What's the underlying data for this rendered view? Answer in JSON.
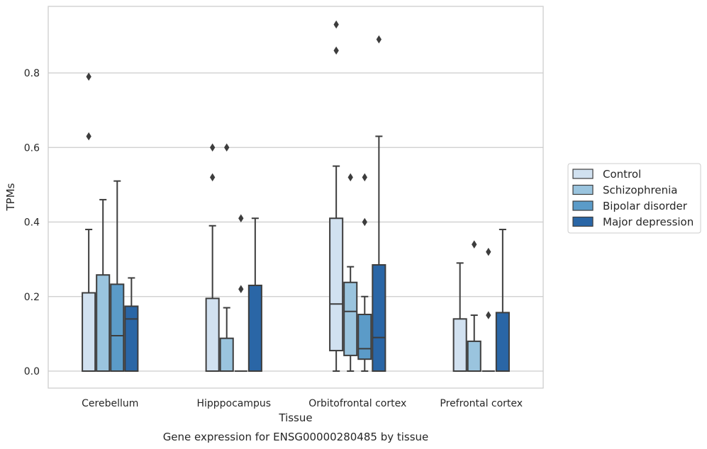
{
  "chart_data": {
    "type": "box",
    "title": "",
    "caption": "Gene expression for ENSG00000280485 by tissue",
    "xlabel": "Tissue",
    "ylabel": "TPMs",
    "ylim": [
      -0.045,
      0.98
    ],
    "yticks": [
      0.0,
      0.2,
      0.4,
      0.6,
      0.8
    ],
    "ytick_labels": [
      "0.0",
      "0.2",
      "0.4",
      "0.6",
      "0.8"
    ],
    "grid": true,
    "legend_position": "right-outside",
    "categories": [
      "Cerebellum",
      "Hipppocampus",
      "Orbitofrontal cortex",
      "Prefrontal cortex"
    ],
    "series": [
      {
        "name": "Control",
        "color": "#d1e1f0",
        "boxes": [
          {
            "whislo": 0.0,
            "q1": 0.0,
            "med": 0.0,
            "q3": 0.21,
            "whishi": 0.38,
            "fliers": [
              0.63,
              0.79
            ]
          },
          {
            "whislo": 0.0,
            "q1": 0.0,
            "med": 0.0,
            "q3": 0.195,
            "whishi": 0.39,
            "fliers": [
              0.52,
              0.6
            ]
          },
          {
            "whislo": 0.0,
            "q1": 0.055,
            "med": 0.18,
            "q3": 0.41,
            "whishi": 0.55,
            "fliers": [
              0.86,
              0.93
            ]
          },
          {
            "whislo": 0.0,
            "q1": 0.0,
            "med": 0.0,
            "q3": 0.14,
            "whishi": 0.29,
            "fliers": []
          }
        ]
      },
      {
        "name": "Schizophrenia",
        "color": "#9ac4de",
        "boxes": [
          {
            "whislo": 0.0,
            "q1": 0.0,
            "med": 0.0,
            "q3": 0.258,
            "whishi": 0.46,
            "fliers": []
          },
          {
            "whislo": 0.0,
            "q1": 0.0,
            "med": 0.0,
            "q3": 0.088,
            "whishi": 0.17,
            "fliers": [
              0.6
            ]
          },
          {
            "whislo": 0.0,
            "q1": 0.042,
            "med": 0.16,
            "q3": 0.238,
            "whishi": 0.28,
            "fliers": [
              0.52
            ]
          },
          {
            "whislo": 0.0,
            "q1": 0.0,
            "med": 0.0,
            "q3": 0.08,
            "whishi": 0.15,
            "fliers": [
              0.34
            ]
          }
        ]
      },
      {
        "name": "Bipolar disorder",
        "color": "#5b9bc8",
        "boxes": [
          {
            "whislo": 0.0,
            "q1": 0.0,
            "med": 0.095,
            "q3": 0.233,
            "whishi": 0.51,
            "fliers": []
          },
          {
            "whislo": 0.0,
            "q1": 0.0,
            "med": 0.0,
            "q3": 0.0,
            "whishi": 0.0,
            "fliers": [
              0.22,
              0.41
            ]
          },
          {
            "whislo": 0.0,
            "q1": 0.032,
            "med": 0.06,
            "q3": 0.152,
            "whishi": 0.2,
            "fliers": [
              0.4,
              0.52
            ]
          },
          {
            "whislo": 0.0,
            "q1": 0.0,
            "med": 0.0,
            "q3": 0.0,
            "whishi": 0.0,
            "fliers": [
              0.15,
              0.32
            ]
          }
        ]
      },
      {
        "name": "Major depression",
        "color": "#2a66a6",
        "boxes": [
          {
            "whislo": 0.0,
            "q1": 0.0,
            "med": 0.14,
            "q3": 0.174,
            "whishi": 0.25,
            "fliers": []
          },
          {
            "whislo": 0.0,
            "q1": 0.0,
            "med": 0.0,
            "q3": 0.23,
            "whishi": 0.41,
            "fliers": []
          },
          {
            "whislo": 0.0,
            "q1": 0.0,
            "med": 0.09,
            "q3": 0.285,
            "whishi": 0.63,
            "fliers": [
              0.89
            ]
          },
          {
            "whislo": 0.0,
            "q1": 0.0,
            "med": 0.0,
            "q3": 0.157,
            "whishi": 0.38,
            "fliers": []
          }
        ]
      }
    ]
  }
}
